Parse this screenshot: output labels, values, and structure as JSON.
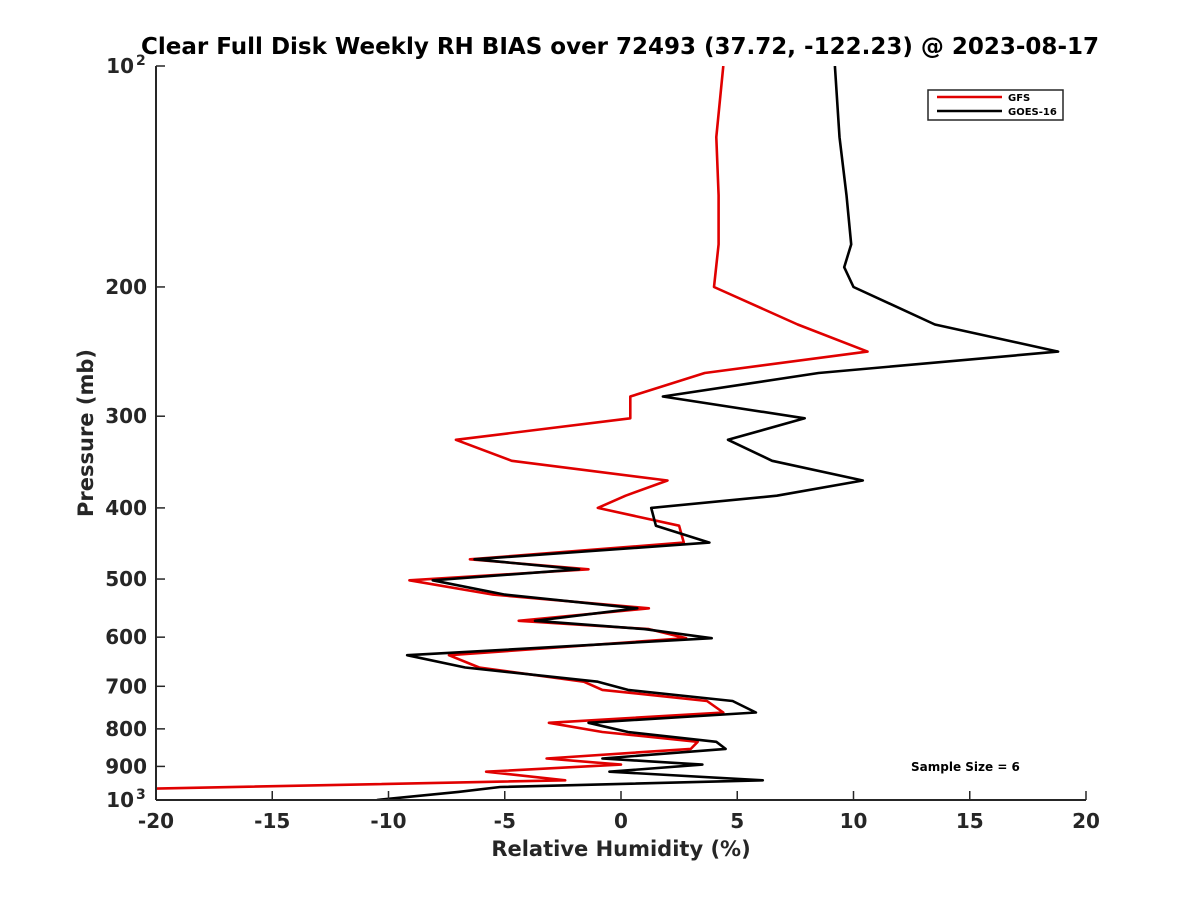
{
  "chart_data": {
    "type": "line",
    "title": "Clear Full Disk Weekly RH BIAS over 72493 (37.72, -122.23) @ 2023-08-17",
    "xlabel": "Relative Humidity (%)",
    "ylabel": "Pressure (mb)",
    "xlim": [
      -20,
      20
    ],
    "ylim": [
      100,
      1000
    ],
    "y_scale": "log",
    "y_reversed": true,
    "grid": false,
    "legend_position": "top-right",
    "x_ticks": [
      "-20",
      "-15",
      "-10",
      "-5",
      "0",
      "5",
      "10",
      "15",
      "20"
    ],
    "y_ticks": [
      {
        "value": 100,
        "label": "10",
        "sup": "2"
      },
      {
        "value": 200,
        "label": "200",
        "sup": ""
      },
      {
        "value": 300,
        "label": "300",
        "sup": ""
      },
      {
        "value": 400,
        "label": "400",
        "sup": ""
      },
      {
        "value": 500,
        "label": "500",
        "sup": ""
      },
      {
        "value": 600,
        "label": "600",
        "sup": ""
      },
      {
        "value": 700,
        "label": "700",
        "sup": ""
      },
      {
        "value": 800,
        "label": "800",
        "sup": ""
      },
      {
        "value": 900,
        "label": "900",
        "sup": ""
      },
      {
        "value": 1000,
        "label": "10",
        "sup": "3"
      }
    ],
    "annotation": "Sample Size = 6",
    "series": [
      {
        "name": "GFS",
        "color": "#e00000",
        "points": [
          [
            4.4,
            100
          ],
          [
            4.1,
            125
          ],
          [
            4.2,
            150
          ],
          [
            4.2,
            175
          ],
          [
            4.0,
            200
          ],
          [
            7.6,
            225
          ],
          [
            10.6,
            245
          ],
          [
            3.6,
            262
          ],
          [
            0.4,
            282
          ],
          [
            0.4,
            302
          ],
          [
            -7.1,
            323
          ],
          [
            -4.7,
            345
          ],
          [
            2.0,
            367
          ],
          [
            0.2,
            385
          ],
          [
            -1.0,
            400
          ],
          [
            2.5,
            423
          ],
          [
            2.7,
            446
          ],
          [
            -6.5,
            470
          ],
          [
            -1.4,
            485
          ],
          [
            -9.1,
            502
          ],
          [
            -5.5,
            525
          ],
          [
            1.2,
            548
          ],
          [
            -4.4,
            570
          ],
          [
            1.2,
            585
          ],
          [
            2.8,
            602
          ],
          [
            -7.4,
            635
          ],
          [
            -6.1,
            660
          ],
          [
            -1.6,
            690
          ],
          [
            -0.8,
            708
          ],
          [
            3.7,
            733
          ],
          [
            4.4,
            760
          ],
          [
            -3.1,
            785
          ],
          [
            -0.8,
            808
          ],
          [
            3.3,
            833
          ],
          [
            3.0,
            852
          ],
          [
            -3.2,
            878
          ],
          [
            0.0,
            895
          ],
          [
            -5.8,
            915
          ],
          [
            -2.4,
            940
          ],
          [
            -20.0,
            965
          ]
        ]
      },
      {
        "name": "GOES-16",
        "color": "#000000",
        "points": [
          [
            9.2,
            100
          ],
          [
            9.4,
            125
          ],
          [
            9.7,
            150
          ],
          [
            9.9,
            175
          ],
          [
            9.6,
            188
          ],
          [
            10.0,
            200
          ],
          [
            13.5,
            225
          ],
          [
            18.8,
            245
          ],
          [
            8.5,
            262
          ],
          [
            1.8,
            282
          ],
          [
            7.9,
            302
          ],
          [
            4.6,
            323
          ],
          [
            6.5,
            345
          ],
          [
            10.4,
            367
          ],
          [
            6.7,
            385
          ],
          [
            1.3,
            400
          ],
          [
            1.5,
            423
          ],
          [
            3.8,
            446
          ],
          [
            -6.3,
            470
          ],
          [
            -1.8,
            485
          ],
          [
            -8.1,
            502
          ],
          [
            -5.0,
            525
          ],
          [
            0.7,
            548
          ],
          [
            -3.7,
            570
          ],
          [
            1.0,
            585
          ],
          [
            3.9,
            602
          ],
          [
            -9.2,
            635
          ],
          [
            -6.7,
            660
          ],
          [
            -1.0,
            690
          ],
          [
            0.3,
            708
          ],
          [
            4.8,
            733
          ],
          [
            5.8,
            760
          ],
          [
            -1.4,
            785
          ],
          [
            0.3,
            808
          ],
          [
            4.1,
            833
          ],
          [
            4.5,
            852
          ],
          [
            -0.8,
            878
          ],
          [
            3.5,
            895
          ],
          [
            -0.5,
            915
          ],
          [
            6.1,
            940
          ],
          [
            -5.2,
            960
          ],
          [
            -7.0,
            975
          ],
          [
            -10.5,
            1000
          ]
        ]
      }
    ]
  }
}
